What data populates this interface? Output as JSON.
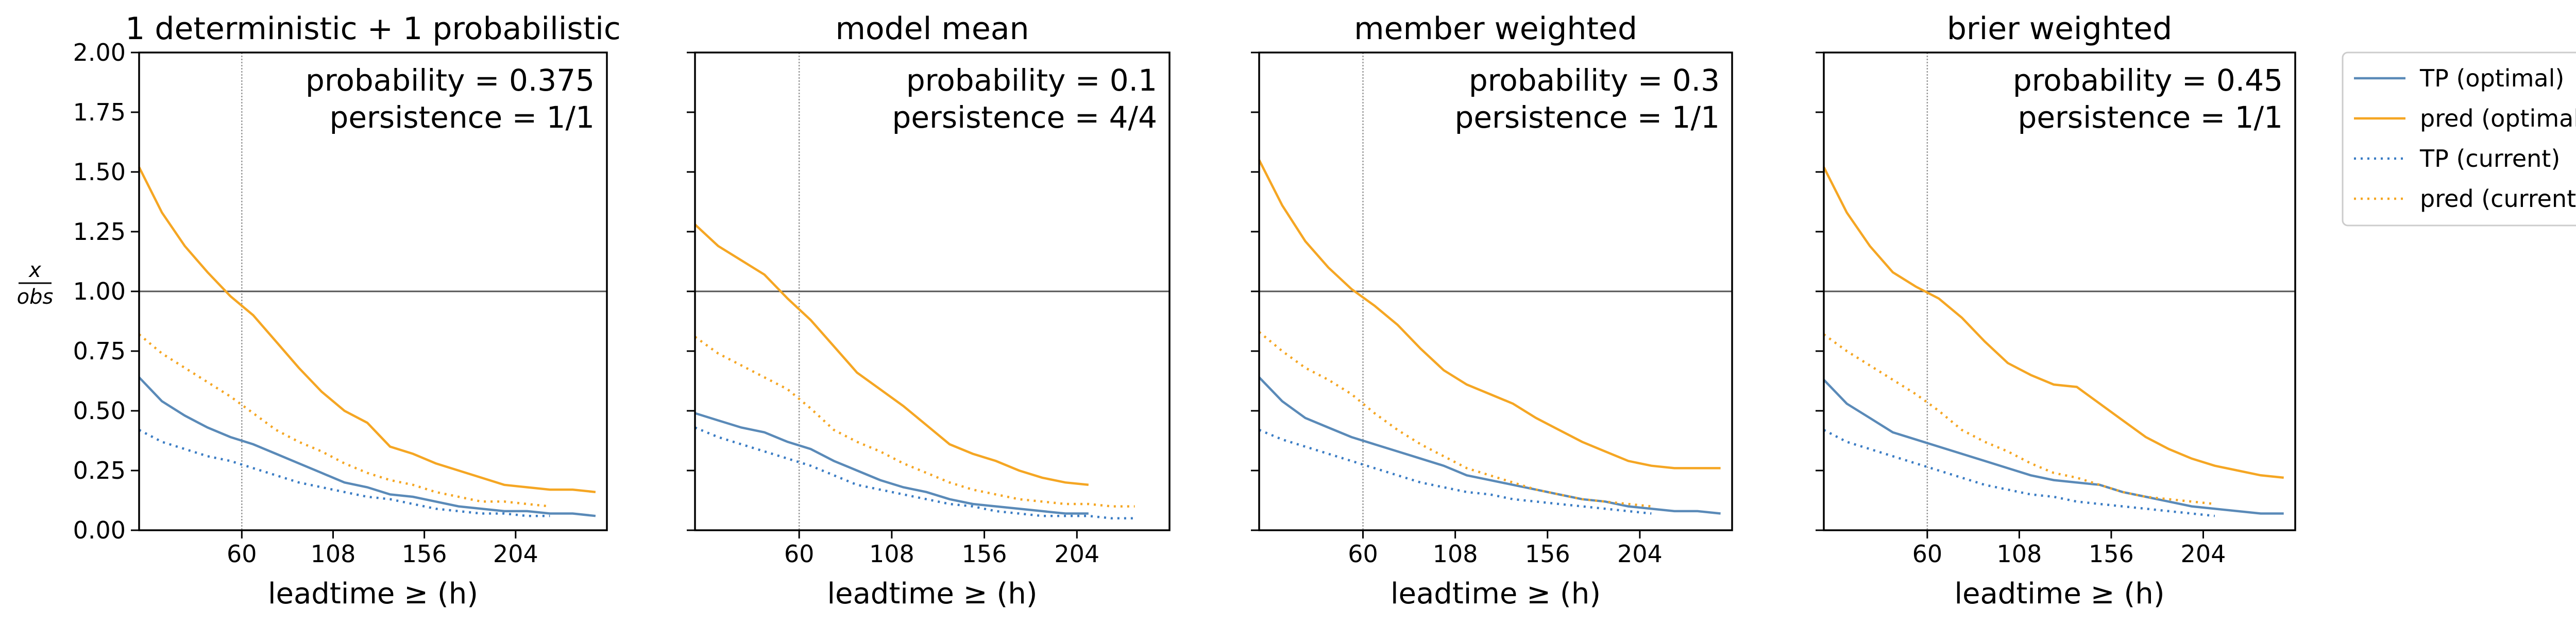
{
  "chart_data": [
    {
      "type": "line",
      "title": "1 deterministic + 1 probabilistic",
      "annotations": [
        "probability = 0.375",
        "persistence = 1/1"
      ],
      "xlabel": "leadtime ≥ (h)",
      "ylabel": {
        "numerator": "x",
        "denominator": "obs"
      },
      "xlim": [
        6,
        252
      ],
      "ylim": [
        0,
        2
      ],
      "xticks": [
        60,
        108,
        156,
        204
      ],
      "yticks": [
        {
          "value": 0,
          "label": "0.00"
        },
        {
          "value": 0.25,
          "label": "0.25"
        },
        {
          "value": 0.5,
          "label": "0.50"
        },
        {
          "value": 0.75,
          "label": "0.75"
        },
        {
          "value": 1,
          "label": "1.00"
        },
        {
          "value": 1.25,
          "label": "1.25"
        },
        {
          "value": 1.5,
          "label": "1.50"
        },
        {
          "value": 1.75,
          "label": "1.75"
        },
        {
          "value": 2,
          "label": "2.00"
        }
      ],
      "vline": 60,
      "hline": 1,
      "legend": "outside right",
      "x": [
        6,
        18,
        30,
        42,
        54,
        66,
        78,
        90,
        102,
        114,
        126,
        138,
        150,
        162,
        174,
        186,
        198,
        210,
        222,
        234,
        246
      ],
      "series": [
        {
          "name": "TP (optimal)",
          "color": "#5a8ab8",
          "linestyle": "solid",
          "values": [
            0.64,
            0.54,
            0.48,
            0.43,
            0.39,
            0.36,
            0.32,
            0.28,
            0.24,
            0.2,
            0.18,
            0.15,
            0.14,
            0.12,
            0.1,
            0.09,
            0.08,
            0.08,
            0.07,
            0.07,
            0.06
          ]
        },
        {
          "name": "pred (optimal)",
          "color": "#f5a623",
          "linestyle": "solid",
          "values": [
            1.52,
            1.33,
            1.19,
            1.08,
            0.98,
            0.9,
            0.79,
            0.68,
            0.58,
            0.5,
            0.45,
            0.35,
            0.32,
            0.28,
            0.25,
            0.22,
            0.19,
            0.18,
            0.17,
            0.17,
            0.16
          ]
        },
        {
          "name": "TP (current)",
          "color": "#3a7cc4",
          "linestyle": "dotted",
          "values": [
            0.42,
            0.37,
            0.34,
            0.31,
            0.29,
            0.26,
            0.23,
            0.2,
            0.18,
            0.16,
            0.14,
            0.13,
            0.11,
            0.09,
            0.08,
            0.07,
            0.07,
            0.06,
            0.06,
            null,
            null
          ]
        },
        {
          "name": "pred (current)",
          "color": "#f5a623",
          "linestyle": "dotted",
          "values": [
            0.82,
            0.74,
            0.68,
            0.62,
            0.56,
            0.49,
            0.42,
            0.37,
            0.33,
            0.28,
            0.24,
            0.21,
            0.19,
            0.16,
            0.14,
            0.12,
            0.12,
            0.11,
            0.1,
            null,
            null
          ]
        }
      ]
    },
    {
      "type": "line",
      "title": "model mean",
      "annotations": [
        "probability = 0.1",
        "persistence = 4/4"
      ],
      "xlabel": "leadtime ≥ (h)",
      "xlim": [
        6,
        252
      ],
      "ylim": [
        0,
        2
      ],
      "xticks": [
        60,
        108,
        156,
        204
      ],
      "yticks": [
        0,
        0.25,
        0.5,
        0.75,
        1,
        1.25,
        1.5,
        1.75,
        2
      ],
      "vline": 60,
      "hline": 1,
      "x": [
        6,
        18,
        30,
        42,
        54,
        66,
        78,
        90,
        102,
        114,
        126,
        138,
        150,
        162,
        174,
        186,
        198,
        210,
        222,
        234,
        246
      ],
      "series": [
        {
          "color": "#5a8ab8",
          "linestyle": "solid",
          "values": [
            0.49,
            0.46,
            0.43,
            0.41,
            0.37,
            0.34,
            0.29,
            0.25,
            0.21,
            0.18,
            0.16,
            0.13,
            0.11,
            0.1,
            0.09,
            0.08,
            0.07,
            0.07,
            null,
            null,
            null
          ]
        },
        {
          "color": "#f5a623",
          "linestyle": "solid",
          "values": [
            1.28,
            1.19,
            1.13,
            1.07,
            0.97,
            0.88,
            0.77,
            0.66,
            0.59,
            0.52,
            0.44,
            0.36,
            0.32,
            0.29,
            0.25,
            0.22,
            0.2,
            0.19,
            null,
            null,
            null
          ]
        },
        {
          "color": "#3a7cc4",
          "linestyle": "dotted",
          "values": [
            0.43,
            0.39,
            0.36,
            0.33,
            0.3,
            0.27,
            0.23,
            0.19,
            0.17,
            0.15,
            0.13,
            0.11,
            0.1,
            0.08,
            0.07,
            0.06,
            0.06,
            0.06,
            0.05,
            0.05,
            null
          ]
        },
        {
          "color": "#f5a623",
          "linestyle": "dotted",
          "values": [
            0.81,
            0.74,
            0.69,
            0.64,
            0.59,
            0.51,
            0.42,
            0.37,
            0.33,
            0.28,
            0.24,
            0.2,
            0.17,
            0.15,
            0.13,
            0.12,
            0.11,
            0.11,
            0.1,
            0.1,
            null
          ]
        }
      ]
    },
    {
      "type": "line",
      "title": "member weighted",
      "annotations": [
        "probability = 0.3",
        "persistence = 1/1"
      ],
      "xlabel": "leadtime ≥ (h)",
      "xlim": [
        6,
        252
      ],
      "ylim": [
        0,
        2
      ],
      "xticks": [
        60,
        108,
        156,
        204
      ],
      "yticks": [
        0,
        0.25,
        0.5,
        0.75,
        1,
        1.25,
        1.5,
        1.75,
        2
      ],
      "vline": 60,
      "hline": 1,
      "x": [
        6,
        18,
        30,
        42,
        54,
        66,
        78,
        90,
        102,
        114,
        126,
        138,
        150,
        162,
        174,
        186,
        198,
        210,
        222,
        234,
        246
      ],
      "series": [
        {
          "color": "#5a8ab8",
          "linestyle": "solid",
          "values": [
            0.64,
            0.54,
            0.47,
            0.43,
            0.39,
            0.36,
            0.33,
            0.3,
            0.27,
            0.23,
            0.21,
            0.19,
            0.17,
            0.15,
            0.13,
            0.12,
            0.1,
            0.09,
            0.08,
            0.08,
            0.07
          ]
        },
        {
          "color": "#f5a623",
          "linestyle": "solid",
          "values": [
            1.55,
            1.36,
            1.21,
            1.1,
            1.01,
            0.94,
            0.86,
            0.76,
            0.67,
            0.61,
            0.57,
            0.53,
            0.47,
            0.42,
            0.37,
            0.33,
            0.29,
            0.27,
            0.26,
            0.26,
            0.26
          ]
        },
        {
          "color": "#3a7cc4",
          "linestyle": "dotted",
          "values": [
            0.42,
            0.38,
            0.35,
            0.32,
            0.29,
            0.26,
            0.23,
            0.2,
            0.18,
            0.16,
            0.15,
            0.13,
            0.12,
            0.11,
            0.1,
            0.09,
            0.08,
            0.07,
            null,
            null,
            null
          ]
        },
        {
          "color": "#f5a623",
          "linestyle": "dotted",
          "values": [
            0.83,
            0.75,
            0.68,
            0.63,
            0.57,
            0.49,
            0.42,
            0.36,
            0.31,
            0.26,
            0.23,
            0.2,
            0.17,
            0.15,
            0.13,
            0.12,
            0.11,
            0.1,
            null,
            null,
            null
          ]
        }
      ]
    },
    {
      "type": "line",
      "title": "brier weighted",
      "annotations": [
        "probability = 0.45",
        "persistence = 1/1"
      ],
      "xlabel": "leadtime ≥ (h)",
      "xlim": [
        6,
        252
      ],
      "ylim": [
        0,
        2
      ],
      "xticks": [
        60,
        108,
        156,
        204
      ],
      "yticks": [
        0,
        0.25,
        0.5,
        0.75,
        1,
        1.25,
        1.5,
        1.75,
        2
      ],
      "vline": 60,
      "hline": 1,
      "x": [
        6,
        18,
        30,
        42,
        54,
        66,
        78,
        90,
        102,
        114,
        126,
        138,
        150,
        162,
        174,
        186,
        198,
        210,
        222,
        234,
        246
      ],
      "series": [
        {
          "color": "#5a8ab8",
          "linestyle": "solid",
          "values": [
            0.63,
            0.53,
            0.47,
            0.41,
            0.38,
            0.35,
            0.32,
            0.29,
            0.26,
            0.23,
            0.21,
            0.2,
            0.19,
            0.16,
            0.14,
            0.12,
            0.1,
            0.09,
            0.08,
            0.07,
            0.07
          ]
        },
        {
          "color": "#f5a623",
          "linestyle": "solid",
          "values": [
            1.52,
            1.33,
            1.19,
            1.08,
            1.02,
            0.97,
            0.89,
            0.79,
            0.7,
            0.65,
            0.61,
            0.6,
            0.53,
            0.46,
            0.39,
            0.34,
            0.3,
            0.27,
            0.25,
            0.23,
            0.22
          ]
        },
        {
          "color": "#3a7cc4",
          "linestyle": "dotted",
          "values": [
            0.42,
            0.37,
            0.34,
            0.31,
            0.28,
            0.25,
            0.22,
            0.19,
            0.17,
            0.15,
            0.14,
            0.12,
            0.11,
            0.1,
            0.09,
            0.08,
            0.07,
            0.06,
            null,
            null,
            null
          ]
        },
        {
          "color": "#f5a623",
          "linestyle": "dotted",
          "values": [
            0.82,
            0.75,
            0.69,
            0.63,
            0.57,
            0.5,
            0.42,
            0.37,
            0.33,
            0.28,
            0.24,
            0.22,
            0.19,
            0.16,
            0.14,
            0.13,
            0.12,
            0.11,
            null,
            null,
            null
          ]
        }
      ]
    }
  ]
}
